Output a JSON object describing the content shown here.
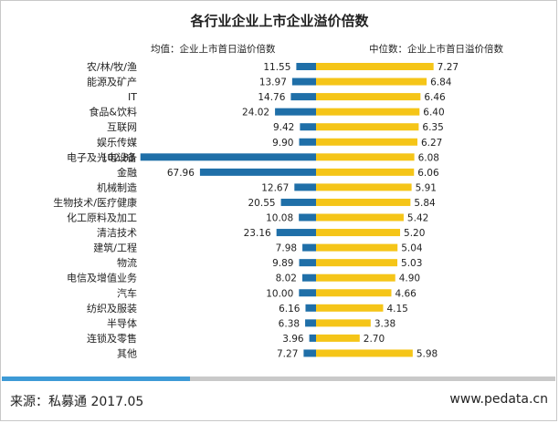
{
  "chart_data": {
    "type": "bar",
    "title": "各行业企业上市企业溢价倍数",
    "orientation": "horizontal-diverging",
    "categories": [
      "农/林/牧/渔",
      "能源及矿产",
      "IT",
      "食品&饮料",
      "互联网",
      "娱乐传媒",
      "电子及光电设备",
      "金融",
      "机械制造",
      "生物技术/医疗健康",
      "化工原料及加工",
      "清洁技术",
      "建筑/工程",
      "物流",
      "电信及增值业务",
      "汽车",
      "纺织及服装",
      "半导体",
      "连锁及零售",
      "其他"
    ],
    "series": [
      {
        "name": "均值：企业上市首日溢价倍数",
        "color": "#1f6fa8",
        "direction": "left",
        "values": [
          11.55,
          13.97,
          14.76,
          24.02,
          9.42,
          9.9,
          102.83,
          67.96,
          12.67,
          20.55,
          10.08,
          23.16,
          7.98,
          9.89,
          8.02,
          10.0,
          6.16,
          6.38,
          3.96,
          7.27
        ],
        "labels": [
          "11.55",
          "13.97",
          "14.76",
          "24.02",
          "9.42",
          "9.90",
          "102.83",
          "67.96",
          "12.67",
          "20.55",
          "10.08",
          "23.16",
          "7.98",
          "9.89",
          "8.02",
          "10.00",
          "6.16",
          "6.38",
          "3.96",
          "7.27"
        ]
      },
      {
        "name": "中位数：企业上市首日溢价倍数",
        "color": "#f5c518",
        "direction": "right",
        "values": [
          7.27,
          6.84,
          6.46,
          6.4,
          6.35,
          6.27,
          6.08,
          6.06,
          5.91,
          5.84,
          5.42,
          5.2,
          5.04,
          5.03,
          4.9,
          4.66,
          4.15,
          3.38,
          2.7,
          5.98
        ],
        "labels": [
          "7.27",
          "6.84",
          "6.46",
          "6.40",
          "6.35",
          "6.27",
          "6.08",
          "6.06",
          "5.91",
          "5.84",
          "5.42",
          "5.20",
          "5.04",
          "5.03",
          "4.90",
          "4.66",
          "4.15",
          "3.38",
          "2.70",
          "5.98"
        ]
      }
    ],
    "xlabel": "",
    "ylabel": "",
    "grid": false,
    "legend_position": "top"
  },
  "footer": {
    "source": "来源：私募通  2017.05",
    "website": "www.pedata.cn"
  }
}
